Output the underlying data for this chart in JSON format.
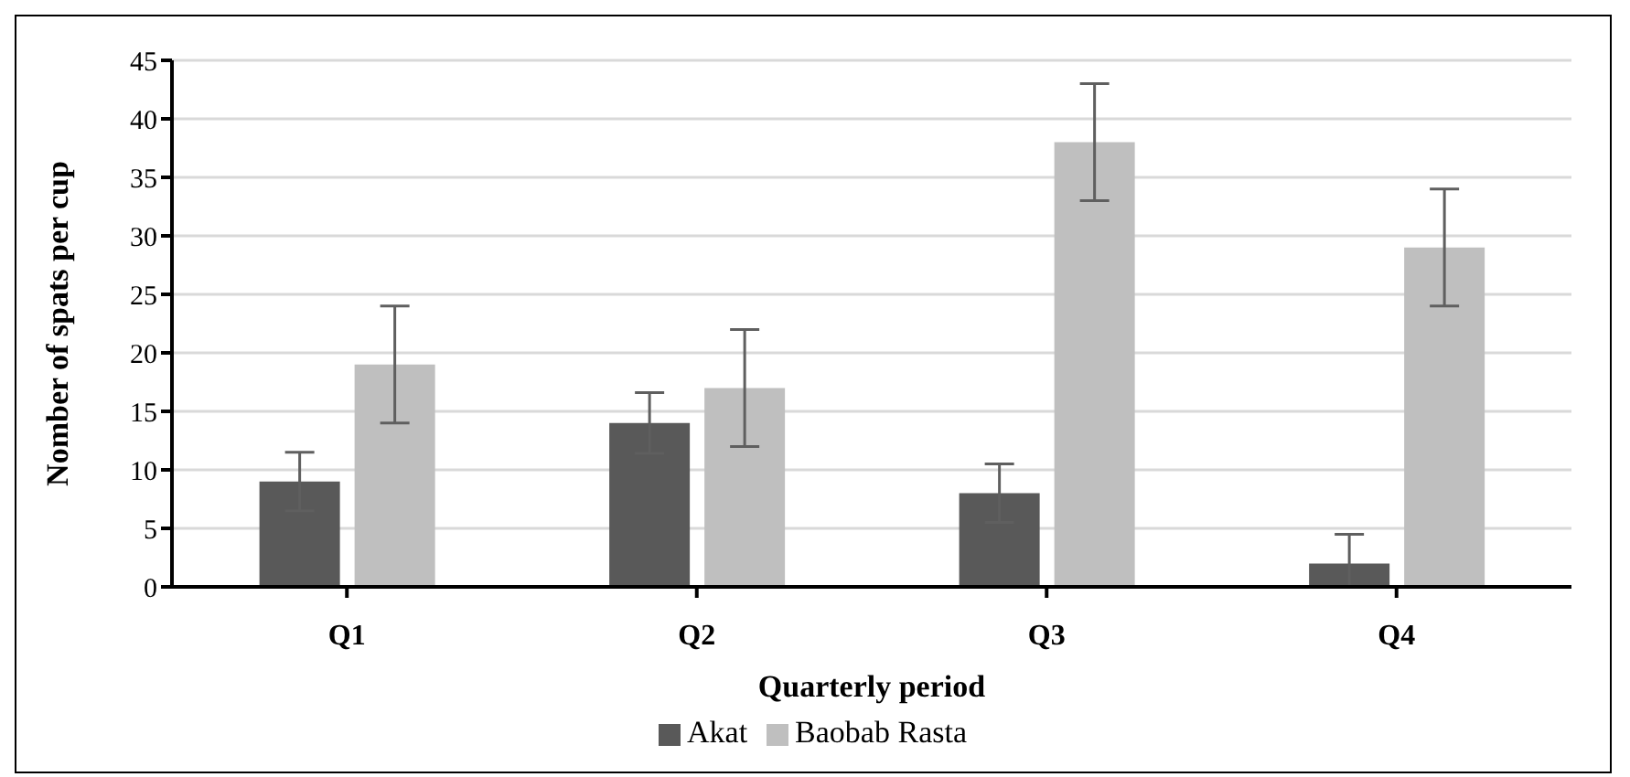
{
  "chart_data": {
    "type": "bar",
    "xlabel": "Quarterly period",
    "ylabel": "Nomber of spats per cup",
    "categories": [
      "Q1",
      "Q2",
      "Q3",
      "Q4"
    ],
    "series": [
      {
        "name": "Akat",
        "color": "#595959",
        "values": [
          9,
          14,
          8,
          2
        ],
        "errors": [
          2.5,
          2.6,
          2.5,
          [
            0,
            4.5
          ]
        ]
      },
      {
        "name": "Baobab Rasta",
        "color": "#bfbfbf",
        "values": [
          19,
          17,
          38,
          29
        ],
        "errors": [
          5,
          5,
          5,
          5
        ]
      }
    ],
    "ylim": [
      0,
      45
    ],
    "yticks": [
      0,
      5,
      10,
      15,
      20,
      25,
      30,
      35,
      40,
      45
    ],
    "grid": "y",
    "legend": "bottom"
  }
}
